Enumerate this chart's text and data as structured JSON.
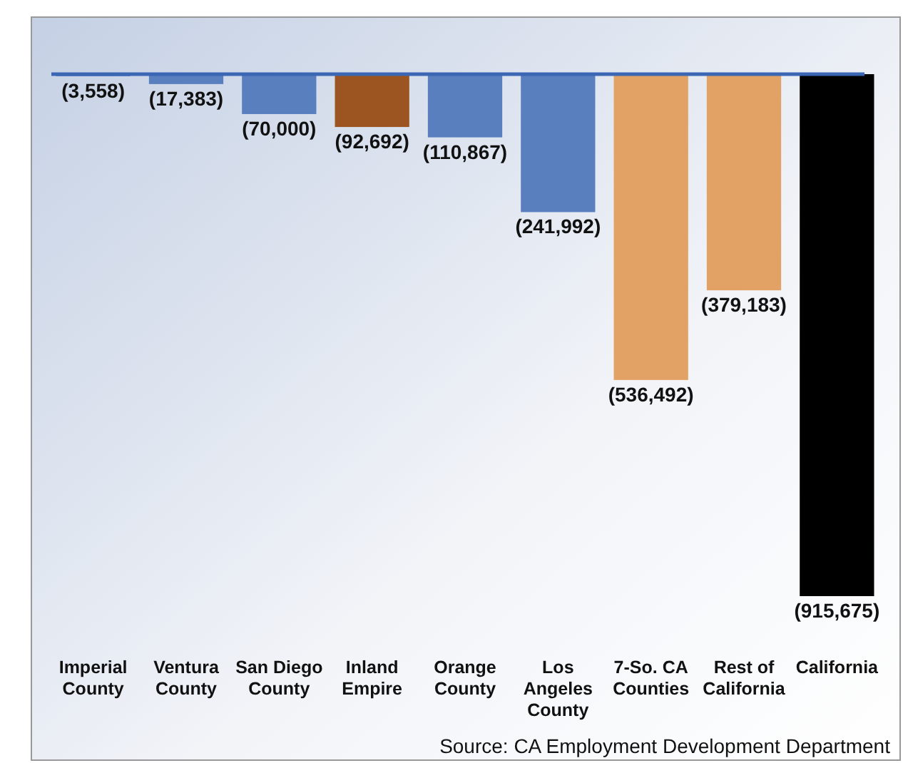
{
  "chart_data": {
    "type": "bar",
    "categories": [
      "Imperial County",
      "Ventura County",
      "San Diego County",
      "Inland Empire",
      "Orange County",
      "Los Angeles County",
      "7-So. CA Counties",
      "Rest of California",
      "California"
    ],
    "values": [
      -3558,
      -17383,
      -70000,
      -92692,
      -110867,
      -241992,
      -536492,
      -379183,
      -915675
    ],
    "colors": [
      "#5a7fbe",
      "#5a7fbe",
      "#5a7fbe",
      "#9c5420",
      "#5a7fbe",
      "#5a7fbe",
      "#e3a265",
      "#e3a265",
      "#000000"
    ],
    "value_labels": [
      "(3,558)",
      "(17,383)",
      "(70,000)",
      "(92,692)",
      "(110,867)",
      "(241,992)",
      "(536,492)",
      "(379,183)",
      "(915,675)"
    ],
    "annotations": [
      "Source:  CA Employment Development Department"
    ]
  }
}
